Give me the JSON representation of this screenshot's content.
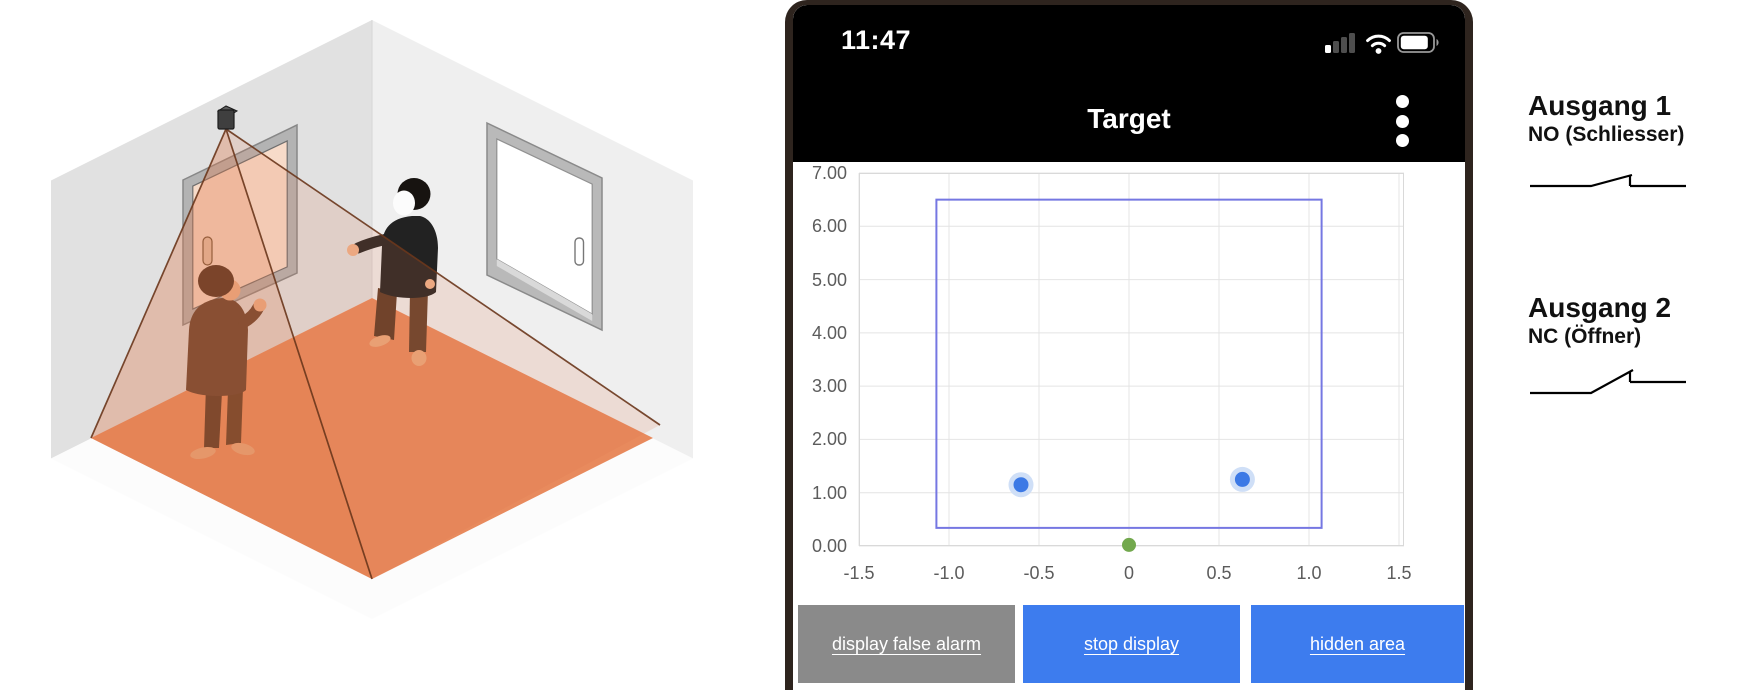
{
  "illustration": {
    "name": "room-with-motion-sensor-and-two-people",
    "colors": {
      "beam_floor": "#e88a5d",
      "beam_line": "#6b371c",
      "wall_left": "#e1e1e1",
      "wall_right": "#efefef"
    }
  },
  "phone": {
    "frame_color": "#2e241e",
    "status_bar": {
      "time": "11:47",
      "icons": [
        "cellular-signal-icon",
        "wifi-icon",
        "battery-icon"
      ]
    },
    "header": {
      "title": "Target",
      "menu_icon": "kebab-menu-icon"
    },
    "buttons": [
      {
        "label": "display false alarm",
        "bg": "#8a8a8a"
      },
      {
        "label": "stop display",
        "bg": "#3d7cee"
      },
      {
        "label": "hidden area",
        "bg": "#3d7cee"
      }
    ]
  },
  "chart_data": {
    "type": "scatter",
    "title": "Target",
    "xlabel": "",
    "ylabel": "",
    "xlim": [
      -1.5,
      1.5
    ],
    "ylim": [
      0,
      7
    ],
    "grid": true,
    "legend": "none",
    "xticks": [
      -1.5,
      -1,
      -0.5,
      0,
      0.5,
      1,
      1.5
    ],
    "xtick_labels": [
      "-1.5",
      "-1.0",
      "-0.5",
      "0",
      "0.5",
      "1.0",
      "1.5"
    ],
    "yticks": [
      0,
      1,
      2,
      3,
      4,
      5,
      6,
      7
    ],
    "ytick_labels": [
      "0.00",
      "1.00",
      "2.00",
      "3.00",
      "4.00",
      "5.00",
      "6.00",
      "7.00"
    ],
    "detection_zone": {
      "x_min": -1.07,
      "x_max": 1.07,
      "y_min": 0.34,
      "y_max": 6.5,
      "stroke": "#7577e2"
    },
    "series": [
      {
        "name": "detected-targets",
        "marker": "circle",
        "color": "#3c79e5",
        "halo_color": "#cfdff7",
        "points": [
          [
            -0.6,
            1.15
          ],
          [
            0.63,
            1.25
          ]
        ]
      },
      {
        "name": "sensor-origin",
        "marker": "circle",
        "color": "#72a84d",
        "points": [
          [
            0,
            0.02
          ]
        ]
      }
    ]
  },
  "outputs": [
    {
      "title": "Ausgang 1",
      "subtitle": "NO (Schliesser)",
      "symbol": "normally-open-contact-icon"
    },
    {
      "title": "Ausgang 2",
      "subtitle": "NC (Öffner)",
      "symbol": "normally-closed-contact-icon"
    }
  ]
}
